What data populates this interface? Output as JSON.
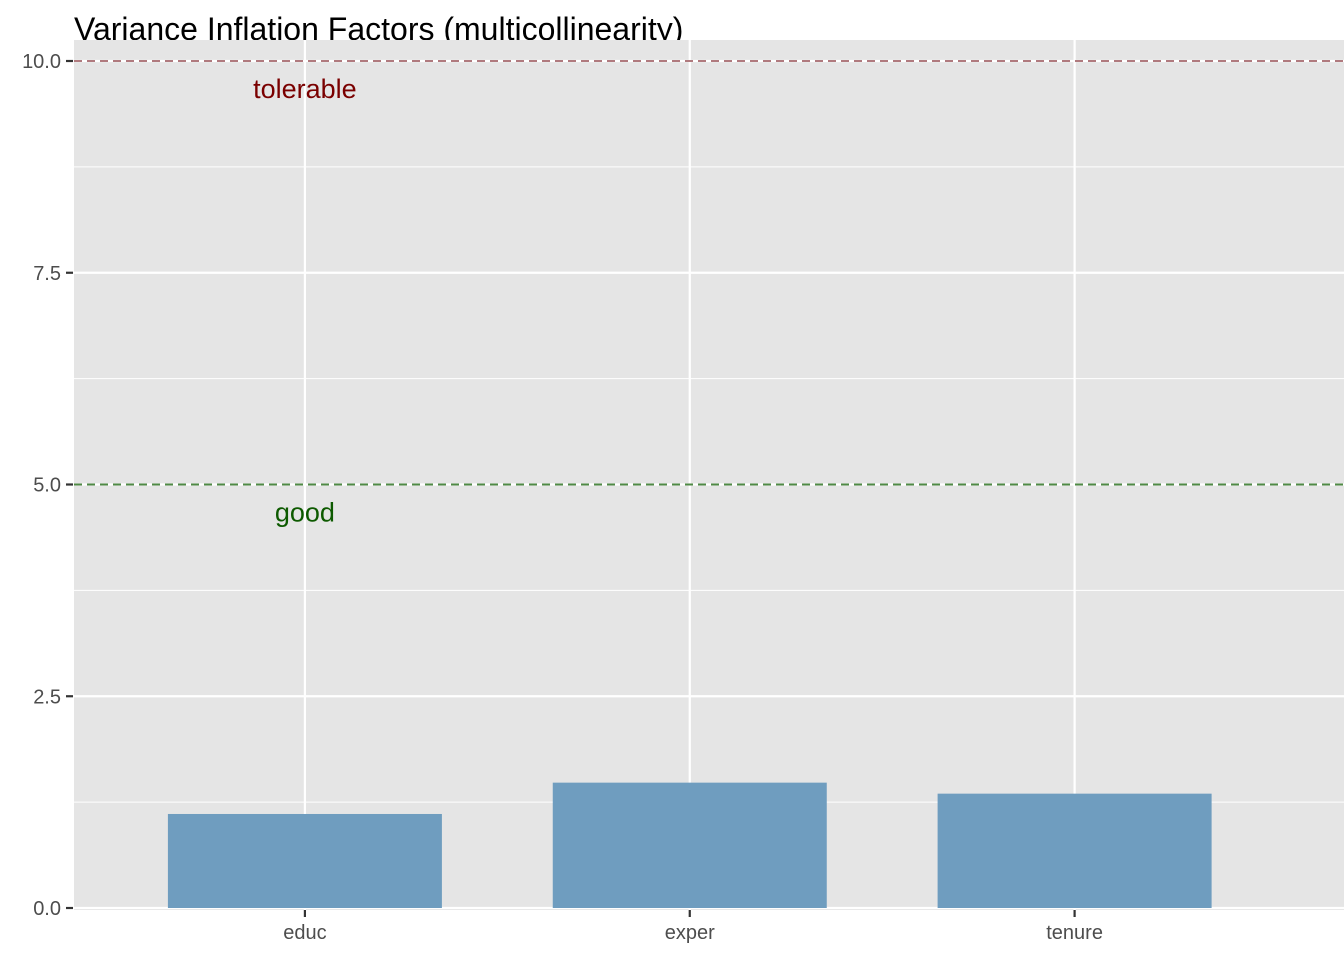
{
  "chart_data": {
    "type": "bar",
    "title": "Variance Inflation Factors (multicollinearity)",
    "xlabel": "",
    "ylabel": "",
    "categories": [
      "educ",
      "exper",
      "tenure"
    ],
    "values": [
      1.11,
      1.48,
      1.35
    ],
    "ylim": [
      0,
      10
    ],
    "yticks": [
      0,
      2.5,
      5,
      7.5,
      10
    ],
    "ytick_labels": [
      "0.0",
      "2.5",
      "5.0",
      "7.5",
      "10.0"
    ],
    "grid": true,
    "legend": "none",
    "colors": {
      "bar": "#6f9dbf",
      "panel": "#e5e5e5",
      "gridline": "#ffffff",
      "tolerable": "#7a0000",
      "good": "#0d5a00",
      "tolerable_line": "#b07a7e",
      "good_line": "#4f8a45",
      "tick_text": "#4d4d4d"
    },
    "reference_lines": [
      {
        "value": 10,
        "label": "tolerable",
        "color": "#7a0000",
        "line_color": "#b07a7e",
        "style": "dashed"
      },
      {
        "value": 5,
        "label": "good",
        "color": "#0d5a00",
        "line_color": "#4f8a45",
        "style": "dashed"
      }
    ]
  }
}
